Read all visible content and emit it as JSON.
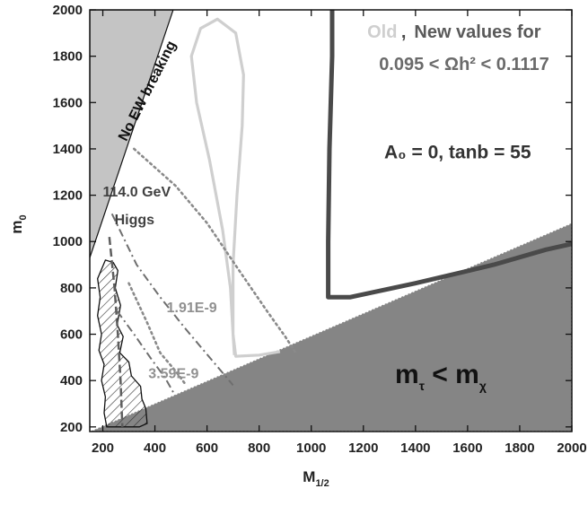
{
  "chart_data": {
    "type": "line",
    "xlabel_main": "M",
    "xlabel_sub": "1/2",
    "ylabel_main": "m",
    "ylabel_sub": "0",
    "xlim": [
      150,
      2000
    ],
    "ylim": [
      180,
      2000
    ],
    "x_ticks": [
      200,
      400,
      600,
      800,
      1000,
      1200,
      1400,
      1600,
      1800,
      2000
    ],
    "y_ticks": [
      200,
      400,
      600,
      800,
      1000,
      1200,
      1400,
      1600,
      1800,
      2000
    ],
    "grid": false,
    "colors": {
      "excluded_light": "#c4c4c4",
      "excluded_dark": "#858585",
      "old_contour": "#cfcfcf",
      "new_contour": "#4a4a4a",
      "higgs": "#5e5e5e",
      "dashdot": "#6e6e6e",
      "dotted": "#8a8a8a",
      "label_gray": "#909090"
    },
    "regions": {
      "no_ewsb": {
        "label": "No EW breaking",
        "polygon": [
          [
            150,
            930
          ],
          [
            150,
            2000
          ],
          [
            470,
            2000
          ]
        ]
      },
      "stau_lsp": {
        "polygon": [
          [
            150,
            180
          ],
          [
            2000,
            1080
          ],
          [
            2000,
            180
          ]
        ]
      },
      "hatched": {
        "polygon": [
          [
            215,
            200
          ],
          [
            205,
            260
          ],
          [
            210,
            330
          ],
          [
            195,
            400
          ],
          [
            205,
            470
          ],
          [
            185,
            530
          ],
          [
            195,
            600
          ],
          [
            180,
            680
          ],
          [
            190,
            760
          ],
          [
            180,
            840
          ],
          [
            210,
            920
          ],
          [
            240,
            910
          ],
          [
            258,
            875
          ],
          [
            248,
            800
          ],
          [
            268,
            725
          ],
          [
            255,
            640
          ],
          [
            278,
            590
          ],
          [
            265,
            520
          ],
          [
            300,
            480
          ],
          [
            310,
            420
          ],
          [
            345,
            375
          ],
          [
            350,
            320
          ],
          [
            365,
            280
          ],
          [
            370,
            215
          ],
          [
            340,
            200
          ]
        ]
      }
    },
    "series": [
      {
        "style": "old",
        "points": [
          [
            880,
            525
          ],
          [
            800,
            510
          ],
          [
            710,
            505
          ],
          [
            700,
            600
          ],
          [
            690,
            800
          ],
          [
            660,
            1050
          ],
          [
            610,
            1350
          ],
          [
            560,
            1600
          ],
          [
            540,
            1800
          ],
          [
            575,
            1920
          ],
          [
            640,
            1960
          ],
          [
            710,
            1900
          ],
          [
            740,
            1720
          ],
          [
            735,
            1500
          ],
          [
            715,
            1200
          ],
          [
            700,
            900
          ],
          [
            700,
            600
          ],
          [
            705,
            510
          ]
        ]
      },
      {
        "style": "new",
        "points": [
          [
            1080,
            2000
          ],
          [
            1080,
            1800
          ],
          [
            1070,
            1400
          ],
          [
            1065,
            1000
          ],
          [
            1065,
            760
          ],
          [
            1150,
            760
          ],
          [
            1400,
            820
          ],
          [
            1700,
            900
          ],
          [
            1900,
            965
          ],
          [
            2000,
            990
          ]
        ]
      },
      {
        "style": "higgs",
        "points": [
          [
            225,
            1020
          ],
          [
            245,
            800
          ],
          [
            258,
            600
          ],
          [
            268,
            400
          ],
          [
            275,
            200
          ]
        ]
      },
      {
        "style": "dashdot",
        "points": [
          [
            235,
            1120
          ],
          [
            330,
            900
          ],
          [
            420,
            760
          ],
          [
            520,
            620
          ],
          [
            610,
            500
          ],
          [
            670,
            420
          ],
          [
            700,
            380
          ]
        ]
      },
      {
        "style": "dashdot",
        "points": [
          [
            255,
            700
          ],
          [
            320,
            600
          ],
          [
            385,
            495
          ],
          [
            440,
            410
          ],
          [
            470,
            350
          ]
        ]
      },
      {
        "style": "dotted",
        "points": [
          [
            320,
            1400
          ],
          [
            480,
            1240
          ],
          [
            600,
            1080
          ],
          [
            720,
            880
          ],
          [
            830,
            700
          ],
          [
            900,
            590
          ],
          [
            940,
            520
          ]
        ]
      },
      {
        "style": "dotted",
        "points": [
          [
            300,
            820
          ],
          [
            370,
            650
          ],
          [
            420,
            520
          ],
          [
            480,
            440
          ],
          [
            520,
            380
          ]
        ]
      }
    ],
    "annotations": [
      {
        "name": "legend-old",
        "text": "Old",
        "x": 1215,
        "y": 1880,
        "color": "#cfcfcf",
        "size": 20
      },
      {
        "name": "legend-sep",
        "text": " , ",
        "x": 1345,
        "y": 1880,
        "color": "#4a4a4a",
        "size": 20
      },
      {
        "name": "legend-new",
        "text": "New values for",
        "x": 1395,
        "y": 1880,
        "color": "#5a5a5a",
        "size": 20
      },
      {
        "name": "relic-range",
        "text": "0.095 <  Ωh² < 0.1117",
        "x": 1260,
        "y": 1740,
        "color": "#6a6a6a",
        "size": 20
      },
      {
        "name": "params",
        "text": "A₀ = 0, tanb = 55",
        "x": 1280,
        "y": 1360,
        "color": "#333333",
        "size": 21
      },
      {
        "name": "higgs-mass",
        "text": "114.0 GeV",
        "x": 200,
        "y": 1195,
        "color": "#404040",
        "size": 16
      },
      {
        "name": "higgs-word",
        "text": "Higgs",
        "x": 245,
        "y": 1075,
        "color": "#404040",
        "size": 16
      },
      {
        "name": "contour-191",
        "text": "1.91E-9",
        "x": 445,
        "y": 695,
        "color": "#909090",
        "size": 16
      },
      {
        "name": "contour-359",
        "text": "3.59E-9",
        "x": 375,
        "y": 410,
        "color": "#909090",
        "size": 16
      }
    ],
    "lsp_label": {
      "text": "m",
      "tau": "τ",
      "chi": "χ",
      "lt": "<"
    }
  }
}
